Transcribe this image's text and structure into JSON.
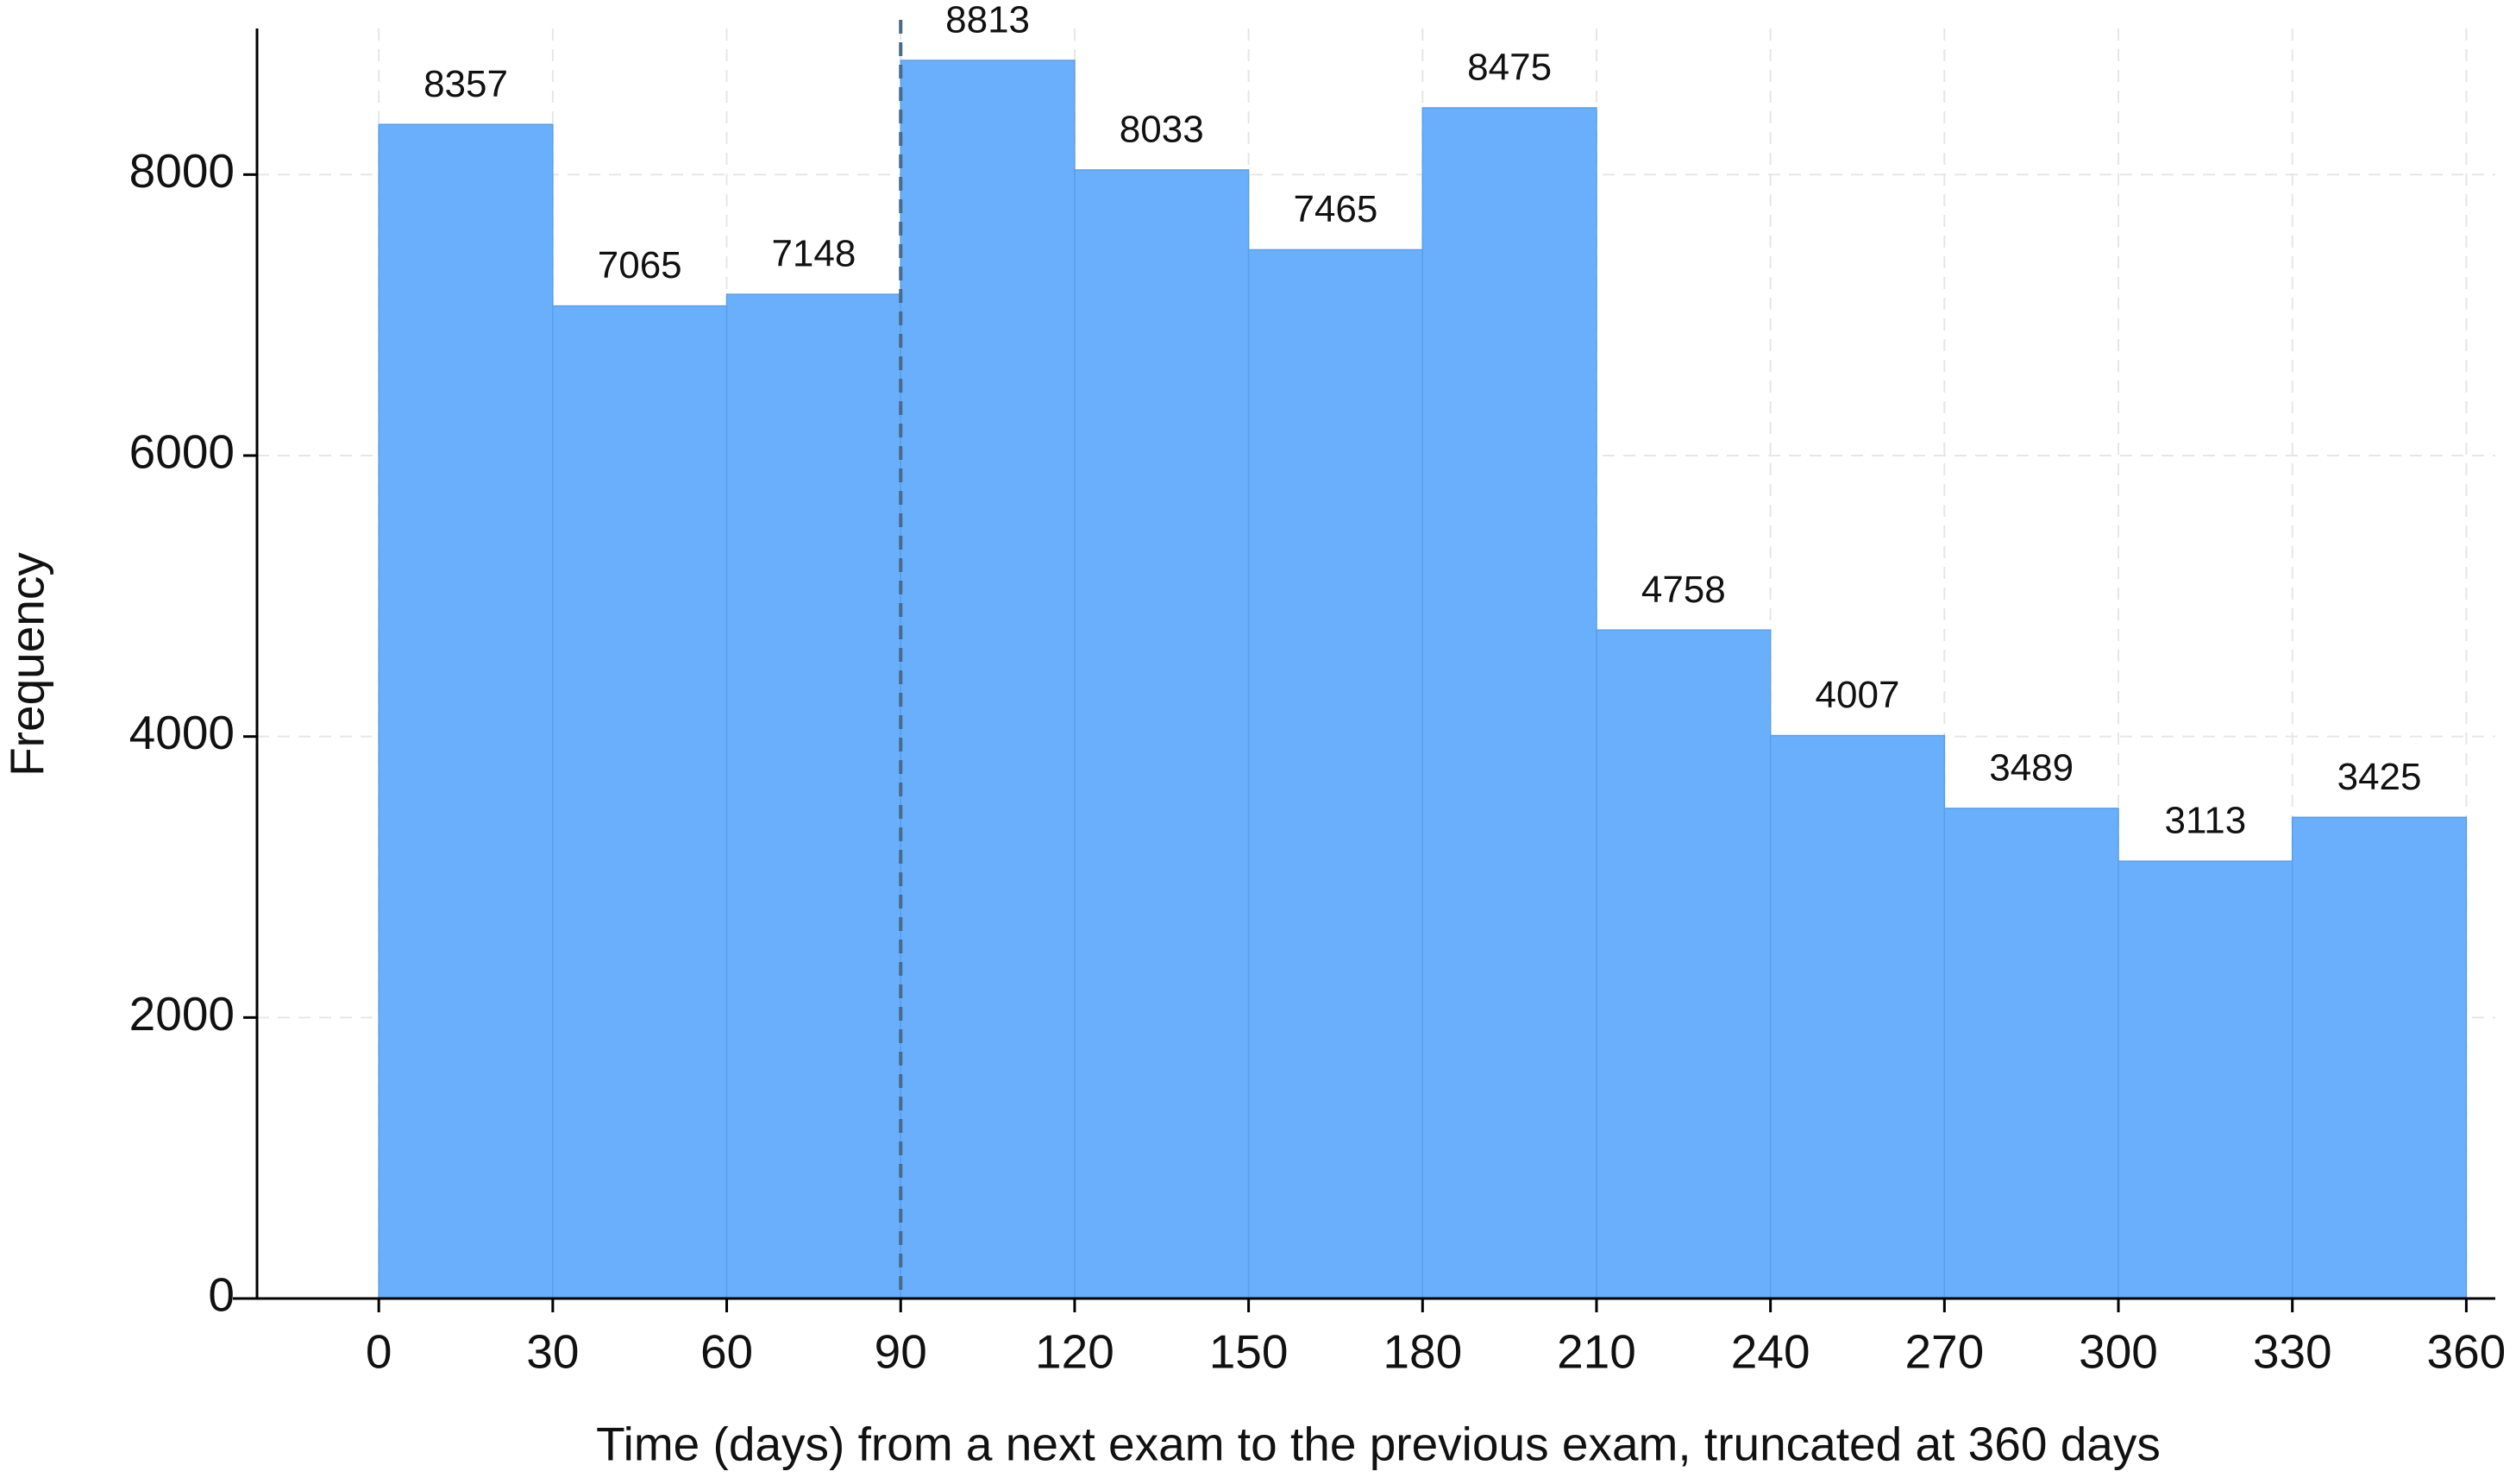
{
  "chart_data": {
    "type": "histogram",
    "xlabel": "Time (days) from a next exam to the previous exam, truncated at 360 days",
    "ylabel": "Frequency",
    "bins": [
      0,
      30,
      60,
      90,
      120,
      150,
      180,
      210,
      240,
      270,
      300,
      330,
      360
    ],
    "values": [
      8357,
      7065,
      7148,
      8813,
      8033,
      7465,
      8475,
      4758,
      4007,
      3489,
      3113,
      3425
    ],
    "color": "#6aaffb",
    "xlim": [
      -21,
      365
    ],
    "ylim": [
      0,
      9040
    ],
    "xticks": [
      0,
      30,
      60,
      90,
      120,
      150,
      180,
      210,
      240,
      270,
      300,
      330,
      360
    ],
    "yticks": [
      0,
      2000,
      4000,
      6000,
      8000
    ],
    "grid": true,
    "vline": 90
  }
}
